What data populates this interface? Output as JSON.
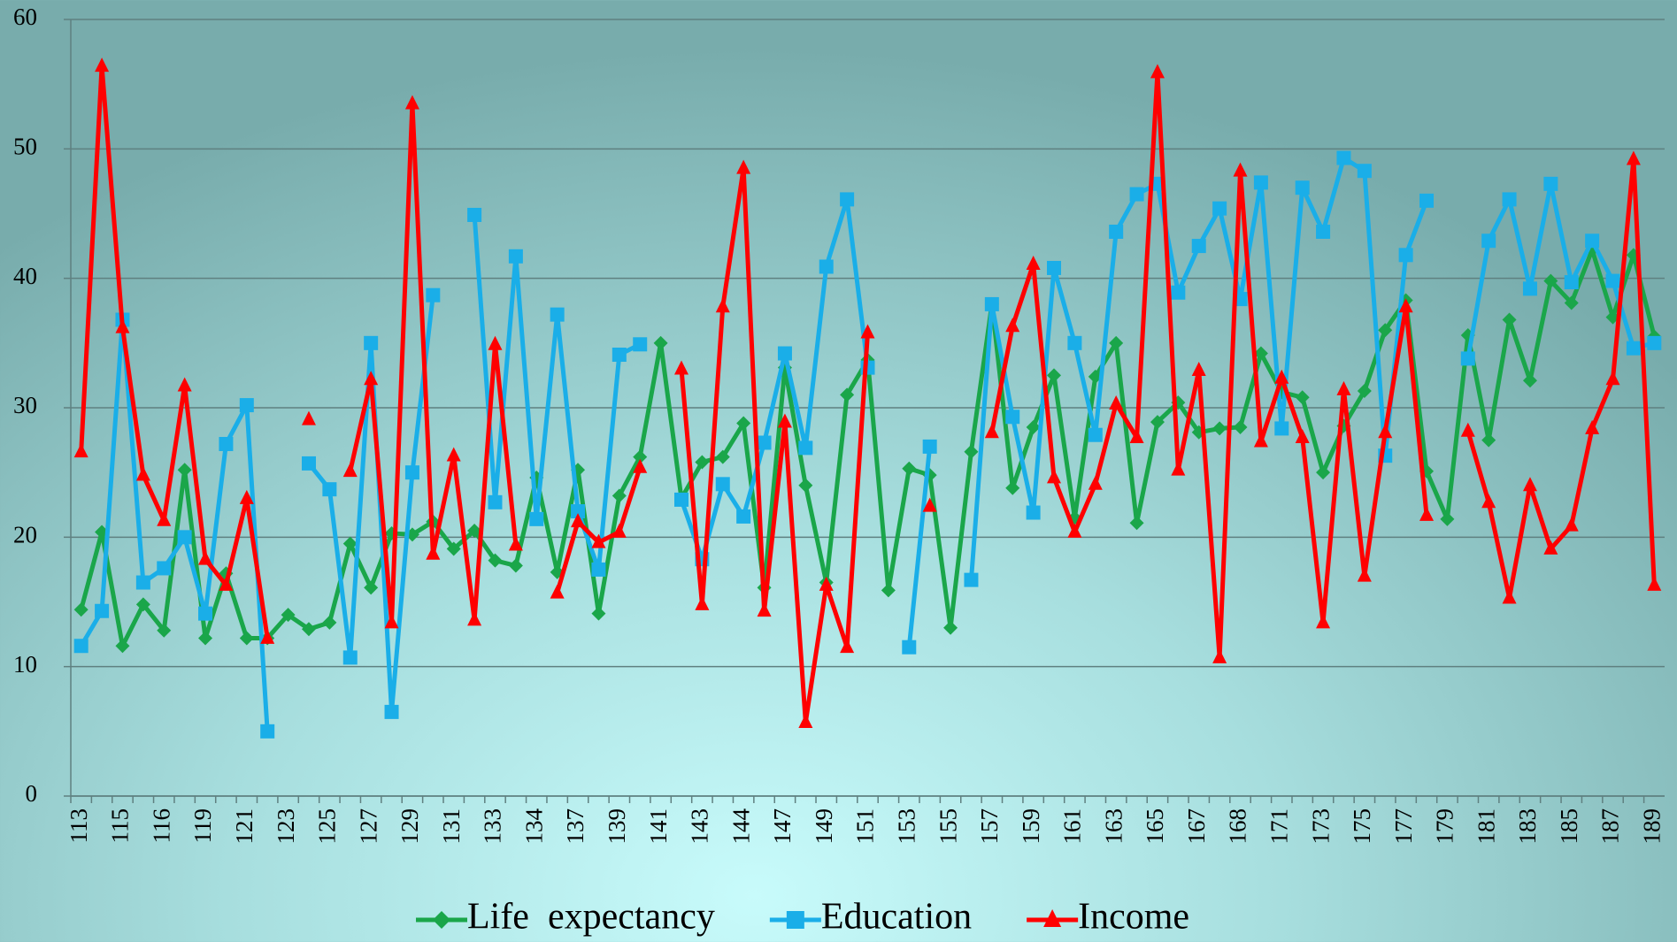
{
  "chart_data": {
    "type": "line",
    "categories": [
      "113",
      null,
      "115",
      null,
      "116",
      null,
      "119",
      null,
      "121",
      null,
      "123",
      null,
      "125",
      null,
      "127",
      null,
      "129",
      null,
      "131",
      null,
      "133",
      null,
      "134",
      null,
      "137",
      null,
      "139",
      null,
      "141",
      null,
      "143",
      null,
      "144",
      null,
      "147",
      null,
      "149",
      null,
      "151",
      null,
      "153",
      null,
      "155",
      null,
      "157",
      null,
      "159",
      null,
      "161",
      null,
      "163",
      null,
      "165",
      null,
      "167",
      null,
      "168",
      null,
      "171",
      null,
      "173",
      null,
      "175",
      null,
      "177",
      null,
      "179",
      null,
      "181",
      null,
      "183",
      null,
      "185",
      null,
      "187",
      null,
      "189"
    ],
    "series": [
      {
        "name": "Life  expectancy",
        "color": "#1aa64a",
        "marker": "diamond",
        "values": [
          14.4,
          20.4,
          11.6,
          14.8,
          12.8,
          25.2,
          12.2,
          17.2,
          12.2,
          12.2,
          14.0,
          12.9,
          13.4,
          19.5,
          16.1,
          20.3,
          20.2,
          21.2,
          19.1,
          20.5,
          18.2,
          17.8,
          24.6,
          17.3,
          25.2,
          14.1,
          23.2,
          26.2,
          35.0,
          23.0,
          25.8,
          26.2,
          28.8,
          16.1,
          33.1,
          24.0,
          16.5,
          31.0,
          33.7,
          15.9,
          25.3,
          24.8,
          13.0,
          26.6,
          38.0,
          23.8,
          28.5,
          32.5,
          21.5,
          32.4,
          35.0,
          21.1,
          28.9,
          30.4,
          28.1,
          28.4,
          28.5,
          34.2,
          31.2,
          30.8,
          25.0,
          28.6,
          31.3,
          36.0,
          38.3,
          25.1,
          21.4,
          35.6,
          27.5,
          36.8,
          32.1,
          39.8,
          38.1,
          42.2,
          37.0,
          41.8,
          35.5
        ]
      },
      {
        "name": "Education",
        "color": "#1aaee8",
        "marker": "square",
        "values": [
          11.6,
          14.3,
          36.8,
          16.5,
          17.6,
          20.0,
          14.1,
          27.2,
          30.2,
          5.0,
          null,
          25.7,
          23.7,
          10.7,
          35.0,
          6.5,
          25.0,
          38.7,
          null,
          44.9,
          22.7,
          41.7,
          21.4,
          37.2,
          22.0,
          17.5,
          34.1,
          34.9,
          null,
          22.9,
          18.3,
          24.1,
          21.6,
          27.3,
          34.2,
          26.9,
          40.9,
          46.1,
          33.1,
          null,
          11.5,
          27.0,
          null,
          16.7,
          38.0,
          29.3,
          21.9,
          40.8,
          35.0,
          27.9,
          43.6,
          46.5,
          47.3,
          38.9,
          42.5,
          45.4,
          38.4,
          47.4,
          28.4,
          47.0,
          43.6,
          49.3,
          48.3,
          26.3,
          41.8,
          46.0,
          null,
          33.8,
          42.9,
          46.1,
          39.2,
          47.3,
          39.7,
          42.9,
          39.8,
          34.6,
          35.0
        ]
      },
      {
        "name": "Income",
        "color": "#ff0000",
        "marker": "triangle",
        "values": [
          26.6,
          56.4,
          36.2,
          24.8,
          21.3,
          31.7,
          18.3,
          16.3,
          23.0,
          12.2,
          null,
          29.1,
          null,
          25.1,
          32.2,
          13.4,
          53.5,
          18.7,
          26.3,
          13.6,
          34.9,
          19.4,
          null,
          15.7,
          21.2,
          19.6,
          20.4,
          25.4,
          null,
          33.0,
          14.8,
          37.8,
          48.5,
          14.3,
          28.9,
          5.7,
          16.3,
          11.5,
          35.8,
          null,
          null,
          22.4,
          null,
          null,
          28.1,
          36.3,
          41.1,
          24.6,
          20.4,
          24.1,
          30.3,
          27.7,
          55.9,
          25.2,
          32.9,
          10.7,
          48.3,
          27.4,
          32.3,
          27.7,
          13.4,
          31.4,
          17.0,
          28.1,
          37.8,
          21.7,
          null,
          28.2,
          22.7,
          15.3,
          24.0,
          19.1,
          20.9,
          28.4,
          32.2,
          49.2,
          16.3
        ]
      }
    ],
    "ylim": [
      0,
      60
    ],
    "yticks": [
      0,
      10,
      20,
      30,
      40,
      50,
      60
    ],
    "grid": true,
    "legend": "bottom"
  }
}
